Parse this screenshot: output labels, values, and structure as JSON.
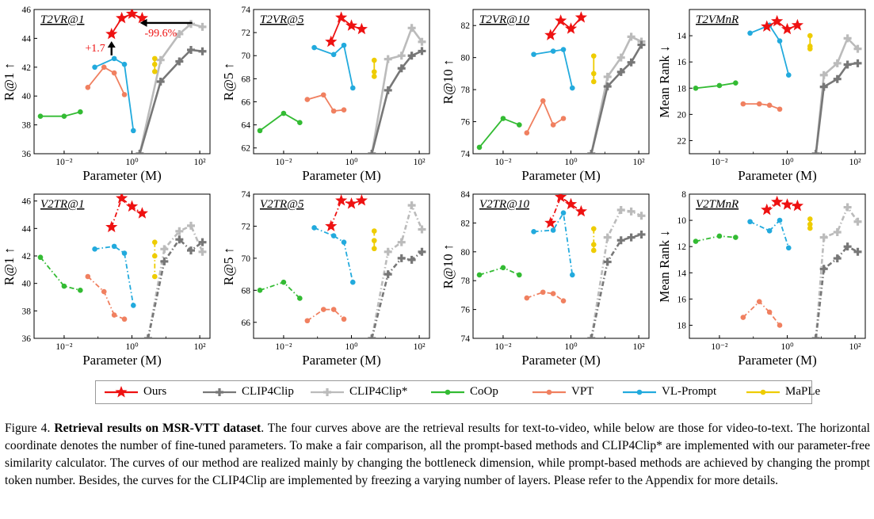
{
  "series_styles": [
    {
      "name": "Ours",
      "color": "#ee1111",
      "marker": "star"
    },
    {
      "name": "CLIP4Clip",
      "color": "#777777",
      "marker": "plus"
    },
    {
      "name": "CLIP4Clip*",
      "color": "#bbbbbb",
      "marker": "plus"
    },
    {
      "name": "CoOp",
      "color": "#33bb33",
      "marker": "circle"
    },
    {
      "name": "VPT",
      "color": "#f08060",
      "marker": "circle"
    },
    {
      "name": "VL-Prompt",
      "color": "#22aadd",
      "marker": "circle"
    },
    {
      "name": "MaPLe",
      "color": "#eecc00",
      "marker": "circle"
    }
  ],
  "chart_data": [
    {
      "type": "line",
      "title": "T2VR@1",
      "xlabel": "Parameter (M)",
      "ylabel": "R@1 ↑",
      "xscale": "log",
      "xlim": [
        0.0013,
        200
      ],
      "ylim": [
        36,
        46
      ],
      "yticks": [
        36,
        38,
        40,
        42,
        44,
        46
      ],
      "invert_y": false,
      "dash": false,
      "series": [
        {
          "name": "Ours",
          "x": [
            0.25,
            0.5,
            1.0,
            2.0
          ],
          "y": [
            44.3,
            45.4,
            45.7,
            45.4
          ]
        },
        {
          "name": "CLIP4Clip",
          "x": [
            1.7,
            7,
            25,
            55,
            120
          ],
          "y": [
            36,
            41.0,
            42.4,
            43.2,
            43.1
          ]
        },
        {
          "name": "CLIP4Clip*",
          "x": [
            1.7,
            7,
            25,
            55,
            120
          ],
          "y": [
            36,
            42.5,
            44.3,
            45.0,
            44.8
          ]
        },
        {
          "name": "CoOp",
          "x": [
            0.002,
            0.01,
            0.03
          ],
          "y": [
            38.6,
            38.6,
            38.9
          ]
        },
        {
          "name": "VPT",
          "x": [
            0.05,
            0.15,
            0.3,
            0.6
          ],
          "y": [
            40.6,
            42.0,
            41.6,
            40.1
          ]
        },
        {
          "name": "VL-Prompt",
          "x": [
            0.08,
            0.3,
            0.6,
            1.1
          ],
          "y": [
            42.0,
            42.6,
            42.2,
            37.6
          ]
        },
        {
          "name": "MaPLe",
          "x": [
            4.7,
            4.7,
            4.7
          ],
          "y": [
            42.6,
            42.2,
            41.7
          ]
        }
      ],
      "annotations": [
        {
          "text": "+1.7",
          "color": "#ee1111"
        },
        {
          "text": "-99.6%",
          "color": "#ee1111"
        }
      ]
    },
    {
      "type": "line",
      "title": "T2VR@5",
      "xlabel": "Parameter (M)",
      "ylabel": "R@5 ↑",
      "xscale": "log",
      "xlim": [
        0.0013,
        200
      ],
      "ylim": [
        61.5,
        74
      ],
      "yticks": [
        62,
        64,
        66,
        68,
        70,
        72,
        74
      ],
      "invert_y": false,
      "dash": false,
      "series": [
        {
          "name": "Ours",
          "x": [
            0.25,
            0.5,
            1.0,
            2.0
          ],
          "y": [
            71.2,
            73.3,
            72.6,
            72.3
          ]
        },
        {
          "name": "CLIP4Clip",
          "x": [
            4,
            12,
            30,
            60,
            120
          ],
          "y": [
            61.5,
            67.0,
            68.9,
            70.0,
            70.4
          ]
        },
        {
          "name": "CLIP4Clip*",
          "x": [
            4,
            12,
            30,
            60,
            120
          ],
          "y": [
            61.5,
            69.7,
            70.0,
            72.4,
            71.2
          ]
        },
        {
          "name": "CoOp",
          "x": [
            0.002,
            0.01,
            0.03
          ],
          "y": [
            63.5,
            65.0,
            64.2
          ]
        },
        {
          "name": "VPT",
          "x": [
            0.05,
            0.15,
            0.3,
            0.6
          ],
          "y": [
            66.2,
            66.6,
            65.2,
            65.3
          ]
        },
        {
          "name": "VL-Prompt",
          "x": [
            0.08,
            0.3,
            0.6,
            1.1
          ],
          "y": [
            70.7,
            70.1,
            70.9,
            67.2
          ]
        },
        {
          "name": "MaPLe",
          "x": [
            4.7,
            4.7,
            4.7
          ],
          "y": [
            69.6,
            68.6,
            68.2
          ]
        }
      ]
    },
    {
      "type": "line",
      "title": "T2VR@10",
      "xlabel": "Parameter (M)",
      "ylabel": "R@10 ↑",
      "xscale": "log",
      "xlim": [
        0.0013,
        200
      ],
      "ylim": [
        74,
        83
      ],
      "yticks": [
        74,
        76,
        78,
        80,
        82
      ],
      "invert_y": false,
      "dash": false,
      "series": [
        {
          "name": "Ours",
          "x": [
            0.25,
            0.5,
            1.0,
            2.0
          ],
          "y": [
            81.4,
            82.3,
            81.8,
            82.5
          ]
        },
        {
          "name": "CLIP4Clip",
          "x": [
            4,
            12,
            30,
            60,
            120
          ],
          "y": [
            74,
            78.2,
            79.1,
            79.7,
            80.8
          ]
        },
        {
          "name": "CLIP4Clip*",
          "x": [
            4,
            12,
            30,
            60,
            120
          ],
          "y": [
            74,
            78.8,
            80.0,
            81.3,
            81.0
          ]
        },
        {
          "name": "CoOp",
          "x": [
            0.002,
            0.01,
            0.03
          ],
          "y": [
            74.4,
            76.2,
            75.8
          ]
        },
        {
          "name": "VPT",
          "x": [
            0.05,
            0.15,
            0.3,
            0.6
          ],
          "y": [
            75.3,
            77.3,
            75.8,
            76.2
          ]
        },
        {
          "name": "VL-Prompt",
          "x": [
            0.08,
            0.3,
            0.6,
            1.1
          ],
          "y": [
            80.2,
            80.4,
            80.5,
            78.1
          ]
        },
        {
          "name": "MaPLe",
          "x": [
            4.7,
            4.7,
            4.7
          ],
          "y": [
            80.1,
            79.0,
            78.5
          ]
        }
      ]
    },
    {
      "type": "line",
      "title": "T2VMnR",
      "xlabel": "",
      "ylabel": "Mean Rank ↓",
      "xscale": "log",
      "xlim": [
        0.0013,
        200
      ],
      "ylim": [
        12,
        23
      ],
      "yticks": [
        14,
        16,
        18,
        20,
        22
      ],
      "invert_y": true,
      "dash": false,
      "series": [
        {
          "name": "Ours",
          "x": [
            0.25,
            0.5,
            1.0,
            2.0
          ],
          "y": [
            13.3,
            12.9,
            13.5,
            13.2
          ]
        },
        {
          "name": "CLIP4Clip",
          "x": [
            7,
            12,
            30,
            60,
            120
          ],
          "y": [
            23,
            17.9,
            17.3,
            16.2,
            16.1
          ]
        },
        {
          "name": "CLIP4Clip*",
          "x": [
            7,
            12,
            30,
            60,
            120
          ],
          "y": [
            23,
            17.0,
            16.1,
            14.2,
            15.0
          ]
        },
        {
          "name": "CoOp",
          "x": [
            0.002,
            0.01,
            0.03
          ],
          "y": [
            18.0,
            17.8,
            17.6
          ]
        },
        {
          "name": "VPT",
          "x": [
            0.05,
            0.15,
            0.3,
            0.6
          ],
          "y": [
            19.2,
            19.2,
            19.3,
            19.6
          ]
        },
        {
          "name": "VL-Prompt",
          "x": [
            0.08,
            0.3,
            0.6,
            1.1
          ],
          "y": [
            13.8,
            13.2,
            14.4,
            17.0
          ]
        },
        {
          "name": "MaPLe",
          "x": [
            4.7,
            4.7,
            4.7
          ],
          "y": [
            14.0,
            14.8,
            15.0
          ]
        }
      ]
    },
    {
      "type": "line",
      "title": "V2TR@1",
      "xlabel": "Parameter (M)",
      "ylabel": "R@1 ↑",
      "xscale": "log",
      "xlim": [
        0.0013,
        200
      ],
      "ylim": [
        36,
        46.5
      ],
      "yticks": [
        36,
        38,
        40,
        42,
        44,
        46
      ],
      "invert_y": false,
      "dash": true,
      "series": [
        {
          "name": "Ours",
          "x": [
            0.25,
            0.5,
            1.0,
            2.0
          ],
          "y": [
            44.1,
            46.2,
            45.6,
            45.1
          ]
        },
        {
          "name": "CLIP4Clip",
          "x": [
            3,
            9,
            25,
            55,
            120
          ],
          "y": [
            36,
            41.6,
            43.2,
            42.4,
            43.0
          ]
        },
        {
          "name": "CLIP4Clip*",
          "x": [
            3,
            9,
            25,
            55,
            120
          ],
          "y": [
            36,
            42.5,
            43.8,
            44.2,
            42.3
          ]
        },
        {
          "name": "CoOp",
          "x": [
            0.002,
            0.01,
            0.03
          ],
          "y": [
            41.9,
            39.8,
            39.5
          ]
        },
        {
          "name": "VPT",
          "x": [
            0.05,
            0.15,
            0.3,
            0.6
          ],
          "y": [
            40.5,
            39.4,
            37.7,
            37.4
          ]
        },
        {
          "name": "VL-Prompt",
          "x": [
            0.08,
            0.3,
            0.6,
            1.1
          ],
          "y": [
            42.5,
            42.7,
            42.2,
            38.4
          ]
        },
        {
          "name": "MaPLe",
          "x": [
            4.7,
            4.7,
            4.7
          ],
          "y": [
            43.0,
            42.0,
            40.5
          ]
        }
      ]
    },
    {
      "type": "line",
      "title": "V2TR@5",
      "xlabel": "Parameter (M)",
      "ylabel": "R@5 ↑",
      "xscale": "log",
      "xlim": [
        0.0013,
        200
      ],
      "ylim": [
        65,
        74
      ],
      "yticks": [
        66,
        68,
        70,
        72,
        74
      ],
      "invert_y": false,
      "dash": true,
      "series": [
        {
          "name": "Ours",
          "x": [
            0.25,
            0.5,
            1.0,
            2.0
          ],
          "y": [
            72.0,
            73.6,
            73.4,
            73.6
          ]
        },
        {
          "name": "CLIP4Clip",
          "x": [
            4,
            12,
            30,
            60,
            120
          ],
          "y": [
            65,
            69.0,
            70.0,
            69.9,
            70.4
          ]
        },
        {
          "name": "CLIP4Clip*",
          "x": [
            4,
            12,
            30,
            60,
            120
          ],
          "y": [
            65,
            70.4,
            71.0,
            73.3,
            71.8
          ]
        },
        {
          "name": "CoOp",
          "x": [
            0.002,
            0.01,
            0.03
          ],
          "y": [
            68.0,
            68.5,
            67.5
          ]
        },
        {
          "name": "VPT",
          "x": [
            0.05,
            0.15,
            0.3,
            0.6
          ],
          "y": [
            66.1,
            66.8,
            66.8,
            66.2
          ]
        },
        {
          "name": "VL-Prompt",
          "x": [
            0.08,
            0.3,
            0.6,
            1.1
          ],
          "y": [
            71.9,
            71.4,
            71.0,
            68.5
          ]
        },
        {
          "name": "MaPLe",
          "x": [
            4.7,
            4.7,
            4.7
          ],
          "y": [
            71.7,
            71.1,
            70.6
          ]
        }
      ]
    },
    {
      "type": "line",
      "title": "V2TR@10",
      "xlabel": "Parameter (M)",
      "ylabel": "R@10 ↑",
      "xscale": "log",
      "xlim": [
        0.0013,
        200
      ],
      "ylim": [
        74,
        84
      ],
      "yticks": [
        74,
        76,
        78,
        80,
        82,
        84
      ],
      "invert_y": false,
      "dash": true,
      "series": [
        {
          "name": "Ours",
          "x": [
            0.25,
            0.5,
            1.0,
            2.0
          ],
          "y": [
            82.0,
            83.8,
            83.3,
            82.8
          ]
        },
        {
          "name": "CLIP4Clip",
          "x": [
            4,
            12,
            30,
            60,
            120
          ],
          "y": [
            74,
            79.3,
            80.8,
            81.0,
            81.2
          ]
        },
        {
          "name": "CLIP4Clip*",
          "x": [
            4,
            12,
            30,
            60,
            120
          ],
          "y": [
            74,
            81.0,
            82.9,
            82.8,
            82.5
          ]
        },
        {
          "name": "CoOp",
          "x": [
            0.002,
            0.01,
            0.03
          ],
          "y": [
            78.4,
            78.9,
            78.4
          ]
        },
        {
          "name": "VPT",
          "x": [
            0.05,
            0.15,
            0.3,
            0.6
          ],
          "y": [
            76.8,
            77.2,
            77.1,
            76.6
          ]
        },
        {
          "name": "VL-Prompt",
          "x": [
            0.08,
            0.3,
            0.6,
            1.1
          ],
          "y": [
            81.4,
            81.5,
            82.7,
            78.4
          ]
        },
        {
          "name": "MaPLe",
          "x": [
            4.7,
            4.7,
            4.7
          ],
          "y": [
            81.6,
            80.5,
            80.1
          ]
        }
      ]
    },
    {
      "type": "line",
      "title": "V2TMnR",
      "xlabel": "",
      "ylabel": "Mean Rank ↓",
      "xscale": "log",
      "xlim": [
        0.0013,
        200
      ],
      "ylim": [
        8,
        19
      ],
      "yticks": [
        8,
        10,
        12,
        14,
        16,
        18
      ],
      "invert_y": true,
      "dash": true,
      "series": [
        {
          "name": "Ours",
          "x": [
            0.25,
            0.5,
            1.0,
            2.0
          ],
          "y": [
            9.2,
            8.6,
            8.8,
            8.9
          ]
        },
        {
          "name": "CLIP4Clip",
          "x": [
            7,
            12,
            30,
            60,
            120
          ],
          "y": [
            19,
            13.7,
            12.9,
            12.0,
            12.4
          ]
        },
        {
          "name": "CLIP4Clip*",
          "x": [
            7,
            12,
            30,
            60,
            120
          ],
          "y": [
            19,
            11.3,
            10.9,
            9.0,
            10.1
          ]
        },
        {
          "name": "CoOp",
          "x": [
            0.002,
            0.01,
            0.03
          ],
          "y": [
            11.6,
            11.2,
            11.3
          ]
        },
        {
          "name": "VPT",
          "x": [
            0.05,
            0.15,
            0.3,
            0.6
          ],
          "y": [
            17.4,
            16.2,
            17.0,
            18.0
          ]
        },
        {
          "name": "VL-Prompt",
          "x": [
            0.08,
            0.3,
            0.6,
            1.1
          ],
          "y": [
            10.1,
            10.8,
            10.0,
            12.1
          ]
        },
        {
          "name": "MaPLe",
          "x": [
            4.7,
            4.7,
            4.7
          ],
          "y": [
            9.9,
            10.3,
            10.6
          ]
        }
      ]
    }
  ],
  "caption": {
    "fig_label": "Figure 4.",
    "bold": "Retrieval results on MSR-VTT dataset",
    "text": ". The four curves above are the retrieval results for text-to-video, while below are those for video-to-text. The horizontal coordinate denotes the number of fine-tuned parameters. To make a fair comparison, all the prompt-based methods and CLIP4Clip* are implemented with our parameter-free similarity calculator. The curves of our method are realized mainly by changing the bottleneck dimension, while prompt-based methods are achieved by changing the prompt token number. Besides, the curves for the CLIP4Clip are implemented by freezing a varying number of layers. Please refer to the Appendix for more details."
  }
}
